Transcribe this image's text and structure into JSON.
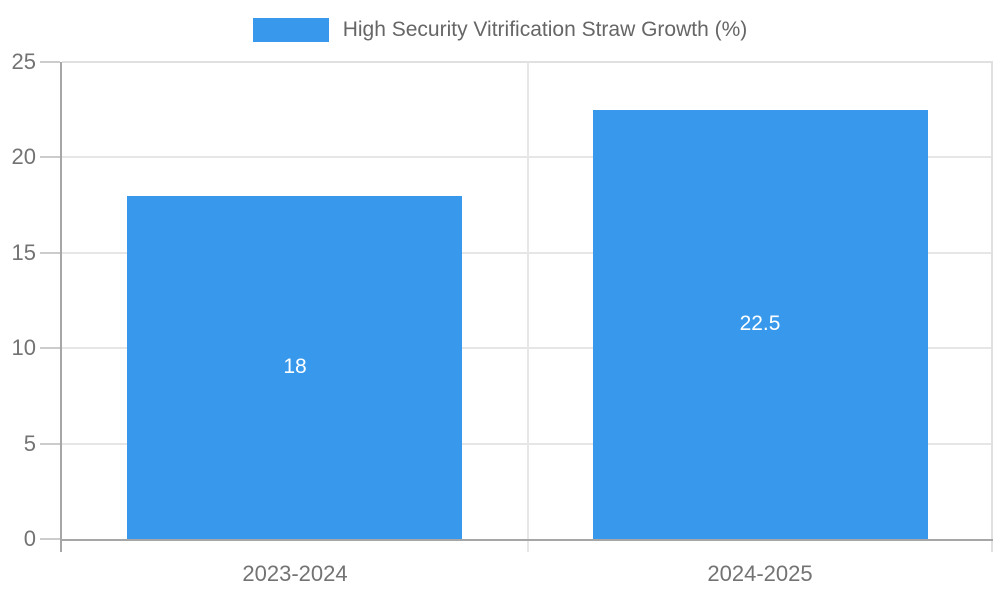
{
  "legend": {
    "label": "High Security Vitrification Straw Growth (%)"
  },
  "colors": {
    "bar": "#3899ec",
    "axis": "#a6a6a6",
    "grid": "#e6e6e6",
    "plot_border": "#e0e0e0",
    "tick": "#cccccc",
    "tick_label": "#737373",
    "data_label": "#ffffff"
  },
  "chart_data": {
    "type": "bar",
    "title": "",
    "series_label": "High Security Vitrification Straw Growth (%)",
    "categories": [
      "2023-2024",
      "2024-2025"
    ],
    "values": [
      18,
      22.5
    ],
    "data_labels": [
      "18",
      "22.5"
    ],
    "xlabel": "",
    "ylabel": "",
    "ylim": [
      0,
      25
    ],
    "yticks": [
      0,
      5,
      10,
      15,
      20,
      25
    ],
    "ytick_labels": [
      "0",
      "5",
      "10",
      "15",
      "20",
      "25"
    ],
    "grid": true,
    "legend_position": "top"
  }
}
